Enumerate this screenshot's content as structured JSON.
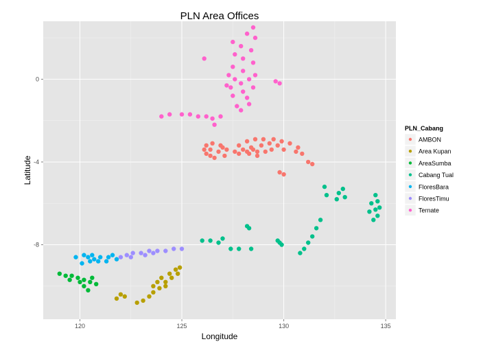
{
  "chart_data": {
    "type": "scatter",
    "title": "PLN Area Offices",
    "xlabel": "Longitude",
    "ylabel": "Latitude",
    "xlim": [
      118.2,
      135.5
    ],
    "ylim": [
      -11.6,
      2.8
    ],
    "xticks": [
      120,
      125,
      130,
      135
    ],
    "yticks": [
      0,
      -4,
      -8
    ],
    "grid": true,
    "legend": {
      "title": "PLN_Cabang",
      "placement": "right"
    },
    "series": [
      {
        "name": "AMBON",
        "color": "#F8766D",
        "points": [
          [
            126.2,
            -3.2
          ],
          [
            126.5,
            -3.1
          ],
          [
            126.9,
            -3.2
          ],
          [
            127.2,
            -3.4
          ],
          [
            127.1,
            -3.7
          ],
          [
            126.6,
            -3.8
          ],
          [
            126.2,
            -3.6
          ],
          [
            126.1,
            -3.4
          ],
          [
            126.4,
            -3.4
          ],
          [
            126.8,
            -3.5
          ],
          [
            127.0,
            -3.3
          ],
          [
            126.4,
            -3.7
          ],
          [
            127.8,
            -3.2
          ],
          [
            128.2,
            -3.0
          ],
          [
            128.6,
            -2.9
          ],
          [
            129.0,
            -2.9
          ],
          [
            129.5,
            -2.9
          ],
          [
            129.9,
            -3.0
          ],
          [
            130.3,
            -3.1
          ],
          [
            130.7,
            -3.3
          ],
          [
            130.9,
            -3.6
          ],
          [
            130.6,
            -3.5
          ],
          [
            130.0,
            -3.4
          ],
          [
            129.4,
            -3.4
          ],
          [
            129.1,
            -3.5
          ],
          [
            128.7,
            -3.7
          ],
          [
            128.3,
            -3.6
          ],
          [
            128.0,
            -3.4
          ],
          [
            127.8,
            -3.6
          ],
          [
            127.6,
            -3.5
          ],
          [
            128.4,
            -3.3
          ],
          [
            128.9,
            -3.2
          ],
          [
            129.3,
            -3.1
          ],
          [
            129.7,
            -3.2
          ],
          [
            128.2,
            -3.5
          ],
          [
            128.5,
            -3.4
          ],
          [
            128.7,
            -3.5
          ],
          [
            131.2,
            -4.0
          ],
          [
            131.4,
            -4.1
          ],
          [
            129.8,
            -4.5
          ],
          [
            130.0,
            -4.6
          ]
        ]
      },
      {
        "name": "Area Kupan",
        "color": "#B79F00",
        "points": [
          [
            121.8,
            -10.6
          ],
          [
            122.0,
            -10.4
          ],
          [
            122.2,
            -10.5
          ],
          [
            122.8,
            -10.8
          ],
          [
            123.1,
            -10.7
          ],
          [
            123.4,
            -10.5
          ],
          [
            123.6,
            -10.3
          ],
          [
            123.6,
            -10.0
          ],
          [
            123.9,
            -10.1
          ],
          [
            124.2,
            -9.8
          ],
          [
            124.5,
            -9.6
          ],
          [
            124.8,
            -9.4
          ],
          [
            124.9,
            -9.1
          ],
          [
            124.0,
            -9.6
          ],
          [
            124.4,
            -9.4
          ],
          [
            124.7,
            -9.2
          ],
          [
            124.2,
            -10.0
          ],
          [
            123.8,
            -9.8
          ]
        ]
      },
      {
        "name": "AreaSumba",
        "color": "#00BA38",
        "points": [
          [
            119.0,
            -9.4
          ],
          [
            119.3,
            -9.5
          ],
          [
            119.6,
            -9.5
          ],
          [
            119.9,
            -9.6
          ],
          [
            120.2,
            -9.7
          ],
          [
            120.5,
            -9.8
          ],
          [
            120.8,
            -9.9
          ],
          [
            120.2,
            -10.0
          ],
          [
            120.4,
            -10.2
          ],
          [
            119.5,
            -9.7
          ],
          [
            120.0,
            -9.8
          ],
          [
            120.6,
            -9.6
          ]
        ]
      },
      {
        "name": "Cabang Tual",
        "color": "#00C08B",
        "points": [
          [
            134.5,
            -5.6
          ],
          [
            134.6,
            -5.9
          ],
          [
            134.7,
            -6.2
          ],
          [
            134.6,
            -6.6
          ],
          [
            134.4,
            -6.8
          ],
          [
            134.2,
            -6.4
          ],
          [
            134.3,
            -6.0
          ],
          [
            134.5,
            -6.3
          ],
          [
            132.7,
            -5.5
          ],
          [
            132.9,
            -5.3
          ],
          [
            133.0,
            -5.7
          ],
          [
            132.6,
            -5.8
          ],
          [
            132.1,
            -5.6
          ],
          [
            132.0,
            -5.2
          ],
          [
            131.8,
            -6.8
          ],
          [
            131.6,
            -7.2
          ],
          [
            131.4,
            -7.6
          ],
          [
            131.2,
            -7.9
          ],
          [
            131.0,
            -8.2
          ],
          [
            130.8,
            -8.4
          ],
          [
            129.8,
            -7.9
          ],
          [
            129.9,
            -8.0
          ],
          [
            129.7,
            -7.8
          ],
          [
            128.2,
            -7.1
          ],
          [
            128.3,
            -7.2
          ],
          [
            127.4,
            -8.2
          ],
          [
            127.8,
            -8.2
          ],
          [
            128.4,
            -8.2
          ],
          [
            126.0,
            -7.8
          ],
          [
            126.4,
            -7.8
          ],
          [
            126.8,
            -7.9
          ],
          [
            127.0,
            -7.7
          ]
        ]
      },
      {
        "name": "FloresBara",
        "color": "#00B4F0",
        "points": [
          [
            119.8,
            -8.6
          ],
          [
            120.2,
            -8.5
          ],
          [
            120.6,
            -8.5
          ],
          [
            121.0,
            -8.6
          ],
          [
            121.4,
            -8.6
          ],
          [
            121.8,
            -8.7
          ],
          [
            120.1,
            -8.9
          ],
          [
            120.5,
            -8.8
          ],
          [
            120.9,
            -8.8
          ],
          [
            121.3,
            -8.8
          ],
          [
            120.7,
            -8.7
          ],
          [
            121.6,
            -8.5
          ],
          [
            120.4,
            -8.6
          ]
        ]
      },
      {
        "name": "FloresTimu",
        "color": "#9D8EFF",
        "points": [
          [
            122.0,
            -8.6
          ],
          [
            122.3,
            -8.5
          ],
          [
            122.6,
            -8.4
          ],
          [
            123.0,
            -8.4
          ],
          [
            123.4,
            -8.3
          ],
          [
            123.8,
            -8.3
          ],
          [
            124.2,
            -8.3
          ],
          [
            124.6,
            -8.2
          ],
          [
            125.0,
            -8.2
          ],
          [
            122.5,
            -8.6
          ],
          [
            123.2,
            -8.5
          ],
          [
            123.6,
            -8.4
          ]
        ]
      },
      {
        "name": "Ternate",
        "color": "#FF61CC",
        "points": [
          [
            127.5,
            1.8
          ],
          [
            127.6,
            1.2
          ],
          [
            127.5,
            0.6
          ],
          [
            127.6,
            0.0
          ],
          [
            127.4,
            -0.4
          ],
          [
            127.5,
            -0.8
          ],
          [
            127.9,
            1.6
          ],
          [
            128.0,
            1.0
          ],
          [
            128.0,
            0.4
          ],
          [
            127.9,
            -0.2
          ],
          [
            128.0,
            -0.6
          ],
          [
            128.2,
            -0.9
          ],
          [
            128.3,
            -1.2
          ],
          [
            128.2,
            2.2
          ],
          [
            128.5,
            2.5
          ],
          [
            128.6,
            2.0
          ],
          [
            128.4,
            1.4
          ],
          [
            128.5,
            0.8
          ],
          [
            128.6,
            0.2
          ],
          [
            128.5,
            -0.4
          ],
          [
            128.3,
            0.0
          ],
          [
            127.3,
            0.2
          ],
          [
            127.2,
            -0.3
          ],
          [
            127.7,
            -1.3
          ],
          [
            127.9,
            -1.5
          ],
          [
            126.1,
            1.0
          ],
          [
            129.6,
            -0.1
          ],
          [
            129.8,
            -0.2
          ],
          [
            125.0,
            -1.7
          ],
          [
            125.4,
            -1.7
          ],
          [
            125.8,
            -1.8
          ],
          [
            126.2,
            -1.8
          ],
          [
            126.5,
            -1.9
          ],
          [
            126.6,
            -2.2
          ],
          [
            124.0,
            -1.8
          ],
          [
            124.4,
            -1.7
          ],
          [
            126.9,
            -1.8
          ]
        ]
      }
    ]
  }
}
